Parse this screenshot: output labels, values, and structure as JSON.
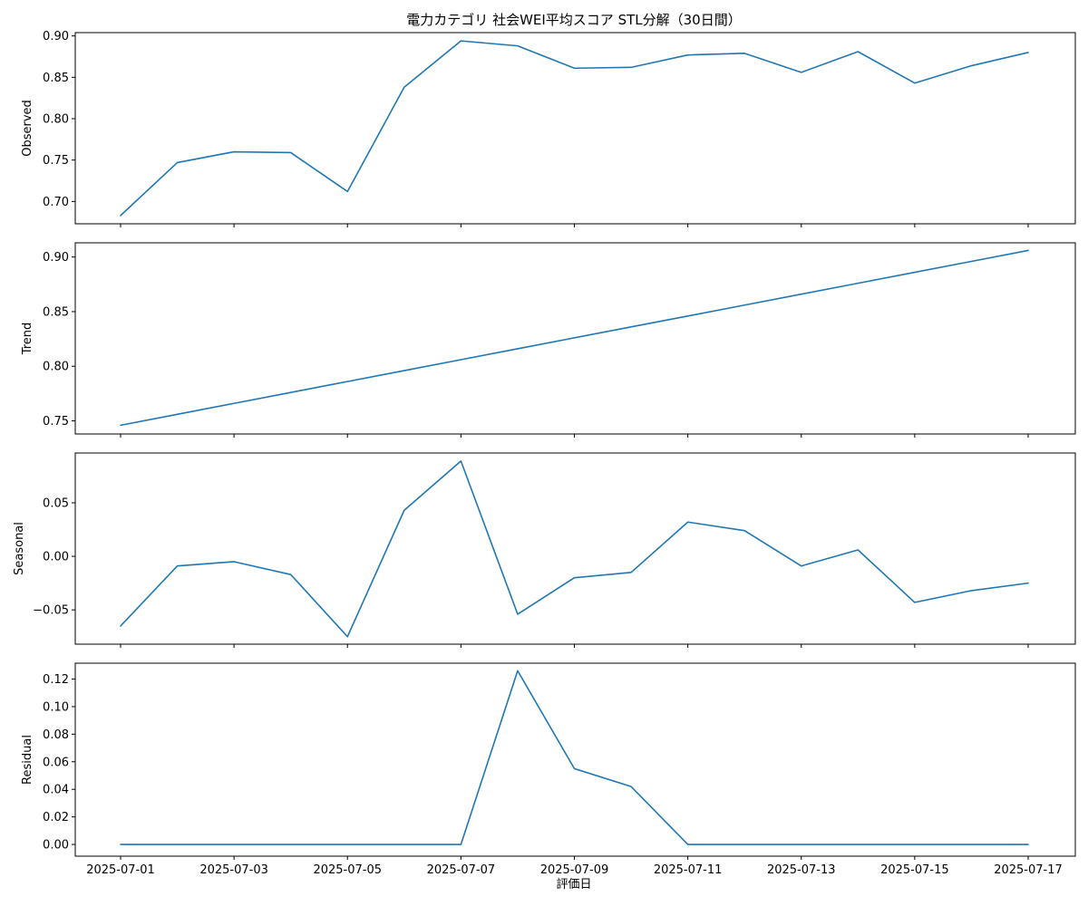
{
  "chart_data": {
    "type": "line",
    "title": "電力カテゴリ 社会WEI平均スコア STL分解（30日間）",
    "xlabel": "評価日",
    "line_color": "#1f77b4",
    "x": [
      "2025-07-01",
      "2025-07-02",
      "2025-07-03",
      "2025-07-04",
      "2025-07-05",
      "2025-07-06",
      "2025-07-07",
      "2025-07-08",
      "2025-07-09",
      "2025-07-10",
      "2025-07-11",
      "2025-07-12",
      "2025-07-13",
      "2025-07-14",
      "2025-07-15",
      "2025-07-16",
      "2025-07-17"
    ],
    "x_tick_labels": [
      "2025-07-01",
      "2025-07-03",
      "2025-07-05",
      "2025-07-07",
      "2025-07-09",
      "2025-07-11",
      "2025-07-13",
      "2025-07-15",
      "2025-07-17"
    ],
    "panels": [
      {
        "name": "Observed",
        "ylabel": "Observed",
        "ylim": [
          0.673,
          0.904
        ],
        "y_ticks": [
          0.7,
          0.75,
          0.8,
          0.85,
          0.9
        ],
        "y_tick_labels": [
          "0.70",
          "0.75",
          "0.80",
          "0.85",
          "0.90"
        ],
        "values": [
          0.683,
          0.747,
          0.76,
          0.759,
          0.712,
          0.838,
          0.894,
          0.888,
          0.861,
          0.862,
          0.877,
          0.879,
          0.856,
          0.881,
          0.843,
          0.864,
          0.88
        ]
      },
      {
        "name": "Trend",
        "ylabel": "Trend",
        "ylim": [
          0.738,
          0.913
        ],
        "y_ticks": [
          0.75,
          0.8,
          0.85,
          0.9
        ],
        "y_tick_labels": [
          "0.75",
          "0.80",
          "0.85",
          "0.90"
        ],
        "values": [
          0.746,
          0.756,
          0.766,
          0.776,
          0.786,
          0.796,
          0.806,
          0.816,
          0.826,
          0.836,
          0.846,
          0.856,
          0.866,
          0.876,
          0.886,
          0.896,
          0.906
        ]
      },
      {
        "name": "Seasonal",
        "ylabel": "Seasonal",
        "ylim": [
          -0.082,
          0.0965
        ],
        "y_ticks": [
          -0.05,
          0.0,
          0.05
        ],
        "y_tick_labels": [
          "−0.05",
          "0.00",
          "0.05"
        ],
        "values": [
          -0.065,
          -0.009,
          -0.005,
          -0.017,
          -0.075,
          0.043,
          0.089,
          -0.054,
          -0.02,
          -0.015,
          0.032,
          0.024,
          -0.009,
          0.006,
          -0.043,
          -0.032,
          -0.025
        ]
      },
      {
        "name": "Residual",
        "ylabel": "Residual",
        "ylim": [
          -0.0085,
          0.1315
        ],
        "y_ticks": [
          0.0,
          0.02,
          0.04,
          0.06,
          0.08,
          0.1,
          0.12
        ],
        "y_tick_labels": [
          "0.00",
          "0.02",
          "0.04",
          "0.06",
          "0.08",
          "0.10",
          "0.12"
        ],
        "values": [
          0,
          0,
          0,
          0,
          0,
          0,
          0,
          0.126,
          0.055,
          0.042,
          0,
          0,
          0,
          0,
          0,
          0,
          0
        ]
      }
    ]
  }
}
